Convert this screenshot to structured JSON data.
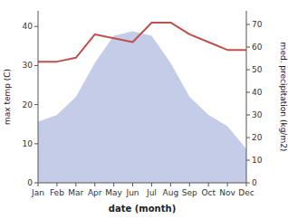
{
  "chart_data": {
    "type": "line",
    "xlabel": "date (month)",
    "ylabel": "max temp (C)",
    "y2label": "med. precipitation (kg/m2)",
    "categories": [
      "Jan",
      "Feb",
      "Mar",
      "Apr",
      "May",
      "Jun",
      "Jul",
      "Aug",
      "Sep",
      "Oct",
      "Nov",
      "Dec"
    ],
    "series": [
      {
        "type": "area",
        "axis": "y2",
        "color": "#c5cce8",
        "values": [
          27,
          30,
          38,
          53,
          65,
          67,
          65,
          53,
          38,
          30,
          25,
          15
        ]
      },
      {
        "type": "line",
        "color": "#c0504d",
        "values": [
          31,
          31,
          32,
          38,
          37,
          36,
          41,
          41,
          38,
          36,
          34,
          34
        ]
      }
    ],
    "ylim": [
      0,
      44
    ],
    "yticks": [
      0,
      10,
      20,
      30,
      40
    ],
    "y2lim": [
      0,
      76
    ],
    "y2ticks": [
      0,
      10,
      20,
      30,
      40,
      50,
      60,
      70
    ],
    "grid": false
  }
}
